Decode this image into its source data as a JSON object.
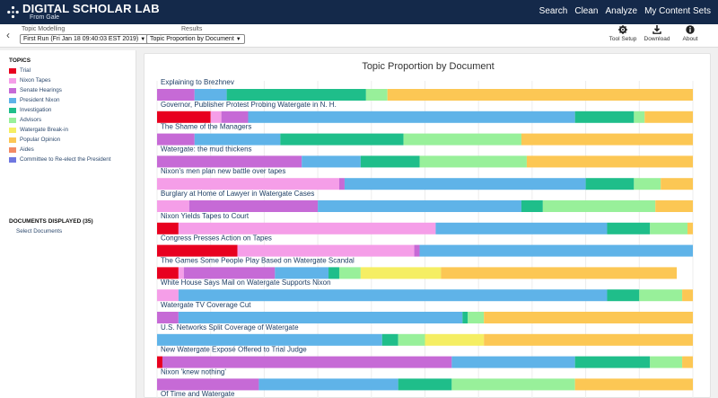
{
  "header": {
    "brand": "DIGITAL SCHOLAR LAB",
    "brand_sub": "From Gale",
    "nav": [
      "Search",
      "Clean",
      "Analyze",
      "My Content Sets"
    ]
  },
  "toolbar": {
    "topic_modelling_label": "Topic Modelling",
    "run_select": "First Run (Fri Jan 18 09:40:03 EST 2019)",
    "results_label": "Results",
    "results_select": "Topic Proportion by Document",
    "tools": [
      {
        "label": "Tool Setup",
        "icon": "gear-icon"
      },
      {
        "label": "Download",
        "icon": "download-icon"
      },
      {
        "label": "About",
        "icon": "info-icon"
      }
    ]
  },
  "sidebar": {
    "topics_heading": "TOPICS",
    "topics": [
      {
        "label": "Trial",
        "color": "#e8001f"
      },
      {
        "label": "Nixon Tapes",
        "color": "#f59ee8"
      },
      {
        "label": "Senate Hearings",
        "color": "#c66ad6"
      },
      {
        "label": "President Nixon",
        "color": "#5fb3e8"
      },
      {
        "label": "Investigation",
        "color": "#1fbe8a"
      },
      {
        "label": "Advisors",
        "color": "#98f09a"
      },
      {
        "label": "Watergate Break-in",
        "color": "#f5ee63"
      },
      {
        "label": "Popular Opinion",
        "color": "#fcc754"
      },
      {
        "label": "Aides",
        "color": "#f28a64"
      },
      {
        "label": "Committee to Re-elect the President",
        "color": "#6f77e0"
      }
    ],
    "documents_heading": "DOCUMENTS DISPLAYED (35)",
    "select_documents": "Select Documents"
  },
  "chart_data": {
    "type": "bar",
    "title": "Topic Proportion by Document",
    "xlim": [
      0,
      1
    ],
    "grid": true,
    "series_order": [
      "Trial",
      "Nixon Tapes",
      "Senate Hearings",
      "President Nixon",
      "Investigation",
      "Advisors",
      "Watergate Break-in",
      "Popular Opinion"
    ],
    "documents": [
      {
        "title": "Explaining to Brezhnev",
        "values": [
          0,
          0,
          0.07,
          0.06,
          0.26,
          0.04,
          0,
          0.57
        ]
      },
      {
        "title": "Governor, Publisher Protest Probing Watergate in N. H.",
        "values": [
          0.1,
          0.02,
          0.05,
          0.61,
          0.11,
          0.02,
          0,
          0.09
        ]
      },
      {
        "title": "The Shame of the Managers",
        "values": [
          0,
          0,
          0.07,
          0.16,
          0.23,
          0.22,
          0,
          0.32
        ]
      },
      {
        "title": "Watergate: the mud thickens",
        "values": [
          0,
          0,
          0.27,
          0.11,
          0.11,
          0.2,
          0,
          0.31
        ]
      },
      {
        "title": "Nixon's men plan new battle over tapes",
        "values": [
          0,
          0.34,
          0.01,
          0.45,
          0.09,
          0.05,
          0,
          0.06
        ]
      },
      {
        "title": "Burglary at Home of Lawyer in Watergate Cases",
        "values": [
          0,
          0.06,
          0.24,
          0.38,
          0.04,
          0.21,
          0,
          0.07
        ]
      },
      {
        "title": "Nixon Yields Tapes to Court",
        "values": [
          0.04,
          0.48,
          0,
          0.32,
          0.08,
          0.07,
          0,
          0.01
        ]
      },
      {
        "title": "Congress Presses Action on Tapes",
        "values": [
          0.15,
          0.33,
          0.01,
          0.51,
          0,
          0,
          0,
          0
        ]
      },
      {
        "title": "The Games Some People Play Based on Watergate Scandal",
        "values": [
          0.04,
          0.01,
          0.17,
          0.1,
          0.02,
          0.04,
          0.15,
          0.44
        ]
      },
      {
        "title": "White House Says Mail on Watergate Supports Nixon",
        "values": [
          0,
          0.04,
          0,
          0.8,
          0.06,
          0.08,
          0,
          0.02
        ]
      },
      {
        "title": "Watergate TV Coverage Cut",
        "values": [
          0,
          0,
          0.04,
          0.53,
          0.01,
          0.03,
          0,
          0.39
        ]
      },
      {
        "title": "U.S. Networks Split Coverage of Watergate",
        "values": [
          0,
          0,
          0,
          0.42,
          0.03,
          0.05,
          0.11,
          0.39
        ]
      },
      {
        "title": "New Watergate Exposé Offered to Trial Judge",
        "values": [
          0.01,
          0,
          0.54,
          0.23,
          0.14,
          0.06,
          0,
          0.02
        ]
      },
      {
        "title": "Nixon 'knew nothing'",
        "values": [
          0,
          0,
          0.19,
          0.26,
          0.1,
          0.23,
          0,
          0.22
        ]
      },
      {
        "title": "Of Time and Watergate",
        "values": []
      }
    ]
  }
}
